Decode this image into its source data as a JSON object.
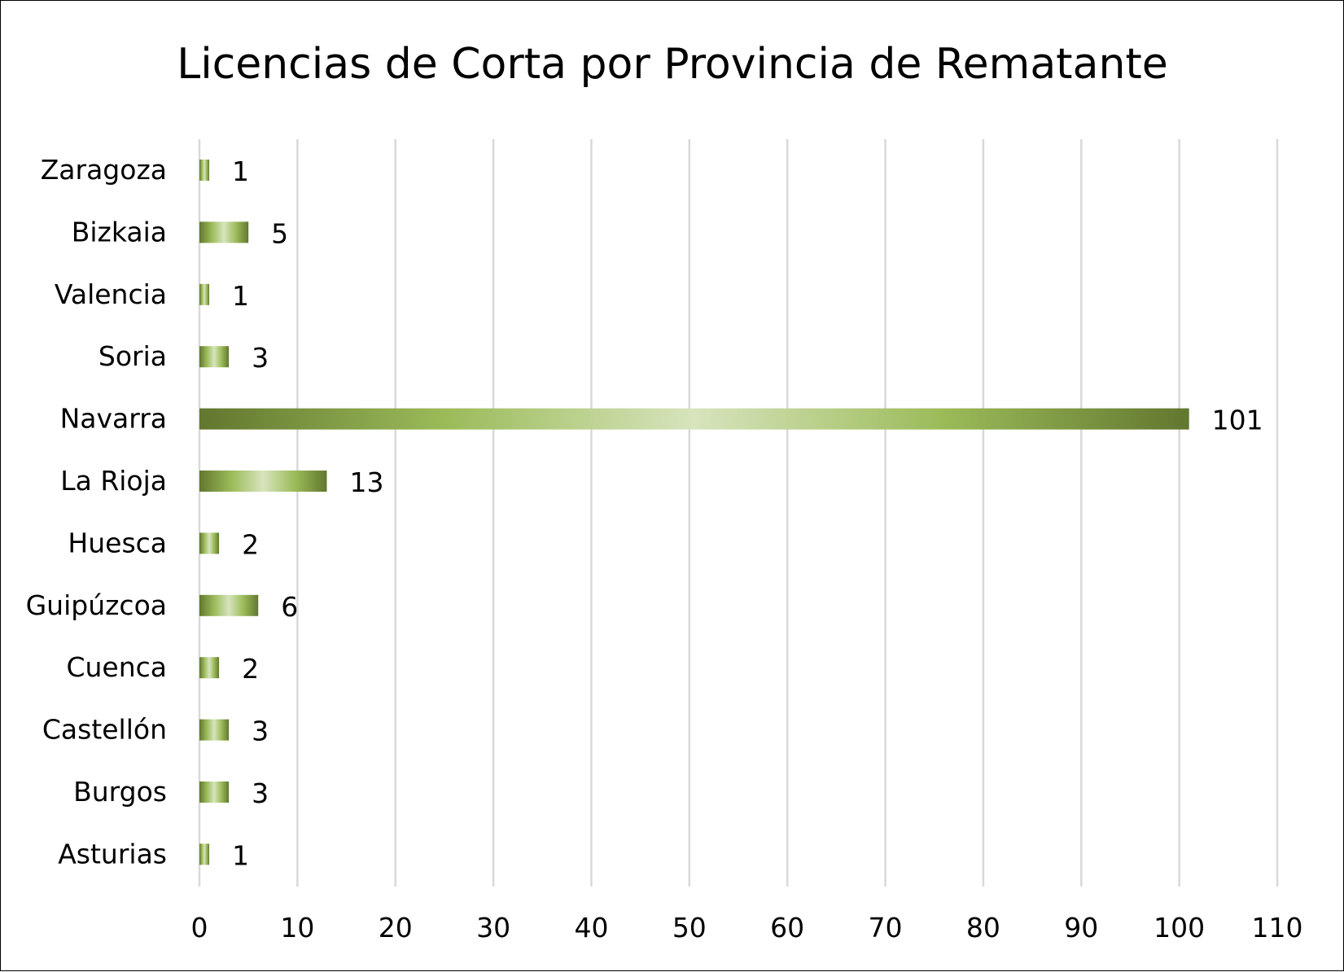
{
  "chart_data": {
    "type": "bar",
    "orientation": "horizontal",
    "title": "Licencias de Corta por Provincia de Rematante",
    "xlabel": "",
    "ylabel": "",
    "categories": [
      "Zaragoza",
      "Bizkaia",
      "Valencia",
      "Soria",
      "Navarra",
      "La Rioja",
      "Huesca",
      "Guipúzcoa",
      "Cuenca",
      "Castellón",
      "Burgos",
      "Asturias"
    ],
    "values": [
      1,
      5,
      1,
      3,
      101,
      13,
      2,
      6,
      2,
      3,
      3,
      1
    ],
    "xlim": [
      0,
      110
    ],
    "xticks": [
      0,
      10,
      20,
      30,
      40,
      50,
      60,
      70,
      80,
      90,
      100,
      110
    ],
    "data_labels": true,
    "grid": "vertical",
    "legend": "none",
    "colors": {
      "bar_dark": "#62772f",
      "bar_mid": "#9bbb59",
      "bar_light": "#d7e4bd",
      "grid": "#d9d9d9",
      "text": "#000000",
      "border": "#000000"
    }
  }
}
